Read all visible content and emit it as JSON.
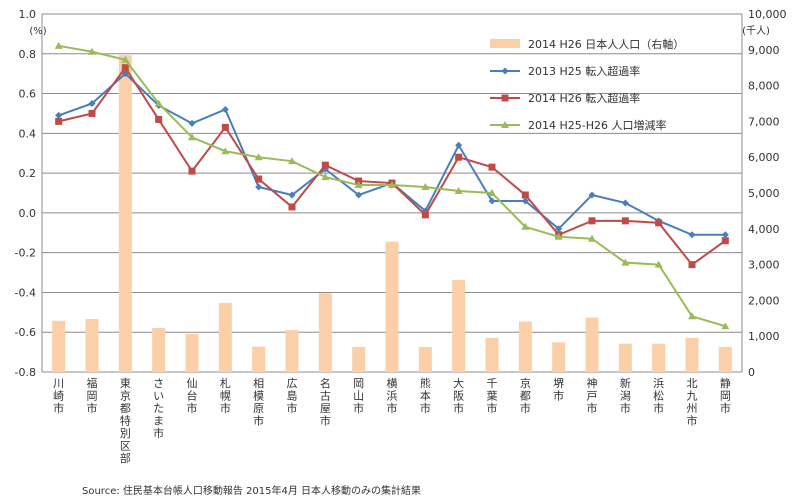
{
  "chart_data": {
    "type": "bar+line",
    "categories": [
      "川崎市",
      "福岡市",
      "東京都特別区部",
      "さいたま市",
      "仙台市",
      "札幌市",
      "相模原市",
      "広島市",
      "名古屋市",
      "岡山市",
      "横浜市",
      "熊本市",
      "大阪市",
      "千葉市",
      "京都市",
      "堺市",
      "神戸市",
      "新潟市",
      "浜松市",
      "北九州市",
      "静岡市"
    ],
    "left_axis": {
      "unit": "(%)",
      "ylim": [
        -0.8,
        1.0
      ],
      "ticks": [
        "1.0",
        "0.8",
        "0.6",
        "0.4",
        "0.2",
        "0.0",
        "-0.2",
        "-0.4",
        "-0.6",
        "-0.8"
      ]
    },
    "right_axis": {
      "unit": "(千人)",
      "ylim": [
        0,
        10000
      ],
      "ticks": [
        "10,000",
        "9,000",
        "8,000",
        "7,000",
        "6,000",
        "5,000",
        "4,000",
        "3,000",
        "2,000",
        "1,000",
        "0"
      ]
    },
    "bars": {
      "name": "2014  H26  日本人人口（右軸）",
      "color": "#fbcfa8",
      "values": [
        1430,
        1480,
        8850,
        1230,
        1060,
        1930,
        710,
        1170,
        2200,
        700,
        3640,
        700,
        2570,
        950,
        1410,
        830,
        1520,
        790,
        790,
        950,
        700
      ]
    },
    "series": [
      {
        "name": "2013  H25  転入超過率",
        "color": "#4a7ebb",
        "marker": "diamond",
        "values": [
          0.49,
          0.55,
          0.7,
          0.54,
          0.45,
          0.52,
          0.13,
          0.09,
          0.22,
          0.09,
          0.15,
          0.01,
          0.34,
          0.06,
          0.06,
          -0.08,
          0.09,
          0.05,
          -0.04,
          -0.11,
          -0.11
        ]
      },
      {
        "name": "2014  H26  転入超過率",
        "color": "#be4b48",
        "marker": "square",
        "values": [
          0.46,
          0.5,
          0.73,
          0.47,
          0.21,
          0.43,
          0.17,
          0.03,
          0.24,
          0.16,
          0.15,
          -0.01,
          0.28,
          0.23,
          0.09,
          -0.11,
          -0.04,
          -0.04,
          -0.05,
          -0.26,
          -0.14
        ]
      },
      {
        "name": "2014  H25-H26  人口増減率",
        "color": "#9bbb59",
        "marker": "triangle",
        "values": [
          0.84,
          0.81,
          0.77,
          0.55,
          0.38,
          0.31,
          0.28,
          0.26,
          0.18,
          0.14,
          0.14,
          0.13,
          0.11,
          0.1,
          -0.07,
          -0.12,
          -0.13,
          -0.25,
          -0.26,
          -0.52,
          -0.57
        ]
      }
    ],
    "grid": true,
    "legend_position": "top-right",
    "source": "Source:  住民基本台帳人口移動報告 2015年4月  日本人移動のみの集計結果"
  }
}
